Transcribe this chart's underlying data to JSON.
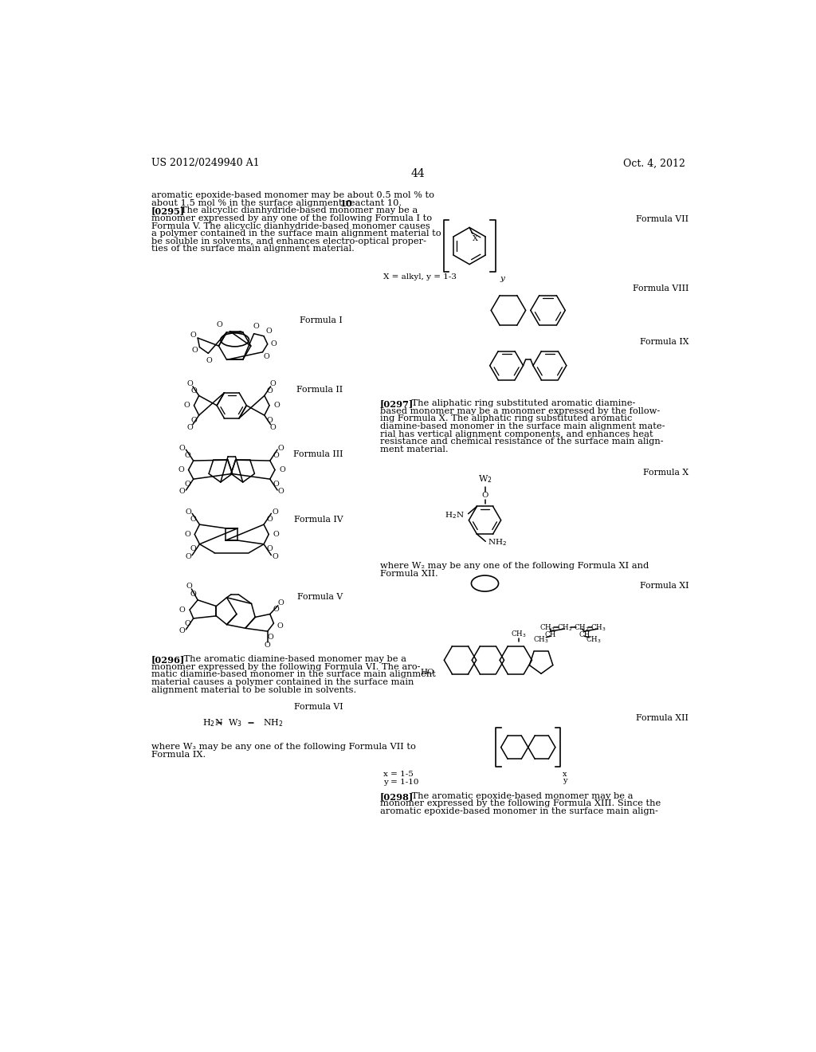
{
  "page_number": "44",
  "patent_number": "US 2012/0249940 A1",
  "patent_date": "Oct. 4, 2012",
  "background_color": "#ffffff",
  "text_color": "#000000",
  "font_size_body": 8.2,
  "font_size_label": 7.8,
  "font_size_header": 9.0,
  "font_size_chem": 6.8,
  "intro_line1": "aromatic epoxide-based monomer may be about 0.5 mol % to",
  "intro_line2": "about 1.5 mol % in the surface alignment reactant ",
  "intro_line2b": "10",
  "intro_line3": "[0295]",
  "intro_line3b": "    The alicyclic dianhydride-based monomer may be a",
  "intro_line4": "monomer expressed by any one of the following Formula I to",
  "intro_line5": "Formula V. The alicyclic dianhydride-based monomer causes",
  "intro_line6": "a polymer contained in the surface main alignment material to",
  "intro_line7": "be soluble in solvents, and enhances electro-optical proper-",
  "intro_line8": "ties of the surface main alignment material.",
  "para_0296_lines": [
    "[0296]",
    "    The aromatic diamine-based monomer may be a",
    "monomer expressed by the following Formula VI. The aro-",
    "matic diamine-based monomer in the surface main alignment",
    "material causes a polymer contained in the surface main",
    "alignment material to be soluble in solvents."
  ],
  "w3_line1": "where W₃ may be any one of the following Formula VII to",
  "w3_line2": "Formula IX.",
  "p297_lines": [
    "[0297]",
    "    The aliphatic ring substituted aromatic diamine-",
    "based monomer may be a monomer expressed by the follow-",
    "ing Formula X. The aliphatic ring substituted aromatic",
    "diamine-based monomer in the surface main alignment mate-",
    "rial has vertical alignment components, and enhances heat",
    "resistance and chemical resistance of the surface main align-",
    "ment material."
  ],
  "w2_line1": "where W₂ may be any one of the following Formula XI and",
  "w2_line2": "Formula XII.",
  "p298_lines": [
    "[0298]",
    "    The aromatic epoxide-based monomer may be a",
    "monomer expressed by the following Formula XIII. Since the",
    "aromatic epoxide-based monomer in the surface main align-"
  ],
  "xy_label": "X = alkyl, y = 1-3",
  "x12_label_1": "x = 1-5",
  "x12_label_2": "y = 1-10"
}
